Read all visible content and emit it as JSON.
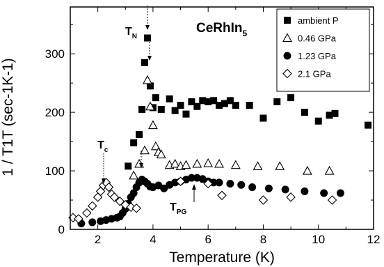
{
  "chart_data": {
    "type": "scatter",
    "title": "CeRhIn5",
    "title_main": "CeRhIn",
    "title_subscript": "5",
    "xlabel": "Temperature (K)",
    "ylabel": "1 / T1T (sec-1K-1)",
    "xlim": [
      1,
      12
    ],
    "ylim": [
      0,
      380
    ],
    "xticks": [
      2,
      4,
      6,
      8,
      10,
      12
    ],
    "yticks": [
      0,
      100,
      200,
      300
    ],
    "grid": false,
    "legend_position": "top-right",
    "series": [
      {
        "name": "ambient P",
        "marker": "filled-square",
        "x": [
          3.1,
          3.3,
          3.5,
          3.6,
          3.7,
          3.8,
          3.9,
          4.0,
          4.1,
          4.3,
          4.6,
          4.8,
          5.0,
          5.2,
          5.4,
          5.6,
          5.8,
          6.0,
          6.2,
          6.4,
          6.6,
          6.8,
          7.0,
          7.5,
          8.0,
          8.5,
          9.0,
          9.5,
          10.0,
          10.4,
          10.6,
          11.8
        ],
        "y": [
          108,
          148,
          162,
          205,
          285,
          327,
          245,
          208,
          225,
          205,
          223,
          203,
          212,
          197,
          218,
          210,
          220,
          218,
          220,
          212,
          215,
          220,
          212,
          212,
          190,
          218,
          225,
          200,
          185,
          195,
          198,
          178
        ]
      },
      {
        "name": "0.46 GPa",
        "marker": "open-triangle",
        "x": [
          3.3,
          3.5,
          3.7,
          3.8,
          3.9,
          4.0,
          4.1,
          4.2,
          4.3,
          4.6,
          4.8,
          5.0,
          5.2,
          5.6,
          6.0,
          6.4,
          7.0,
          7.8,
          8.6,
          9.6,
          10.4
        ],
        "y": [
          92,
          112,
          135,
          255,
          210,
          178,
          142,
          132,
          128,
          110,
          112,
          108,
          110,
          112,
          113,
          112,
          110,
          108,
          108,
          100,
          100
        ]
      },
      {
        "name": "1.23 GPa",
        "marker": "filled-circle",
        "x": [
          1.4,
          1.8,
          2.1,
          2.3,
          2.5,
          2.7,
          2.8,
          2.9,
          3.0,
          3.1,
          3.2,
          3.3,
          3.4,
          3.5,
          3.6,
          3.7,
          3.8,
          3.9,
          4.0,
          4.2,
          4.4,
          4.6,
          4.8,
          5.0,
          5.2,
          5.4,
          5.6,
          5.8,
          6.0,
          6.2,
          6.4,
          6.8,
          7.2,
          7.6,
          8.2,
          8.8,
          9.5,
          10.2,
          10.8
        ],
        "y": [
          10,
          12,
          14,
          16,
          18,
          20,
          22,
          28,
          35,
          44,
          55,
          62,
          72,
          80,
          85,
          82,
          78,
          73,
          72,
          75,
          70,
          76,
          80,
          82,
          85,
          88,
          88,
          86,
          82,
          80,
          80,
          78,
          76,
          72,
          70,
          68,
          65,
          62,
          62
        ]
      },
      {
        "name": "2.1 GPa",
        "marker": "open-diamond",
        "x": [
          1.1,
          1.3,
          1.6,
          1.8,
          2.0,
          2.1,
          2.2,
          2.3,
          2.4,
          2.5,
          2.6,
          2.8,
          3.0,
          3.2,
          3.4,
          5.0,
          6.0,
          6.5,
          8.0,
          9.0,
          10.5
        ],
        "y": [
          20,
          18,
          28,
          40,
          55,
          65,
          75,
          80,
          72,
          60,
          55,
          48,
          42,
          38,
          36,
          82,
          78,
          58,
          50,
          55,
          50
        ]
      }
    ],
    "annotations": [
      {
        "label": "TN",
        "main": "T",
        "sub": "N",
        "x": 3.75,
        "y": 327
      },
      {
        "label": "Tc",
        "main": "T",
        "sub": "c",
        "x": 2.2,
        "y": 75
      },
      {
        "label": "TPG",
        "main": "T",
        "sub": "PG",
        "x": 5.5,
        "y": 88
      }
    ]
  }
}
